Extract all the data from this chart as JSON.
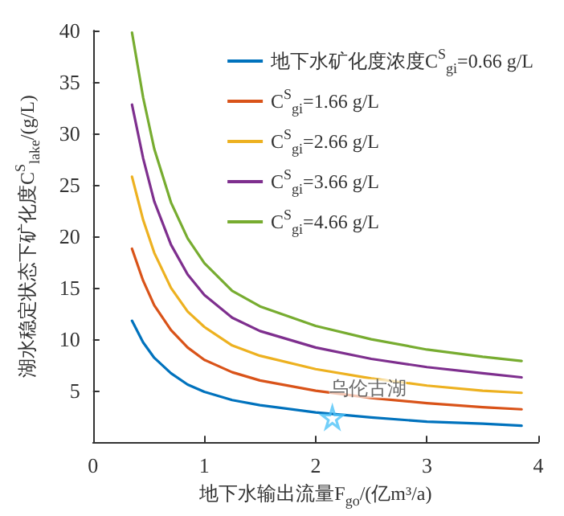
{
  "chart_data": {
    "type": "line",
    "xlabel": "地下水输出流量F$_{go}$/(亿m³/a)",
    "ylabel": "湖水稳定状态下矿化度C$^{S}$$_{lake}$/(g/L)",
    "x": [
      0.35,
      0.45,
      0.55,
      0.7,
      0.85,
      1,
      1.25,
      1.5,
      2,
      2.5,
      3,
      3.5,
      3.85
    ],
    "series": [
      {
        "name": "地下水矿化度浓度C$^{S}$$_{gi}$=0.66 g/L",
        "color": "#0072bd",
        "values": [
          11.8,
          9.7,
          8.2,
          6.7,
          5.6,
          4.9,
          4.1,
          3.6,
          2.9,
          2.4,
          2.0,
          1.8,
          1.6
        ]
      },
      {
        "name": "C$^{S}$$_{gi}$=1.66 g/L",
        "color": "#d95319",
        "values": [
          18.8,
          15.7,
          13.3,
          10.9,
          9.2,
          8.0,
          6.8,
          6.0,
          5.0,
          4.3,
          3.8,
          3.4,
          3.2
        ]
      },
      {
        "name": "C$^{S}$$_{gi}$=2.66 g/L",
        "color": "#edb120",
        "values": [
          25.8,
          21.6,
          18.4,
          15.0,
          12.7,
          11.2,
          9.4,
          8.4,
          7.1,
          6.2,
          5.5,
          5.0,
          4.8
        ]
      },
      {
        "name": "C$^{S}$$_{gi}$=3.66 g/L",
        "color": "#7e2f8e",
        "values": [
          32.8,
          27.6,
          23.4,
          19.2,
          16.3,
          14.3,
          12.1,
          10.8,
          9.2,
          8.1,
          7.3,
          6.7,
          6.3
        ]
      },
      {
        "name": "C$^{S}$$_{gi}$=4.66 g/L",
        "color": "#77ac30",
        "values": [
          39.8,
          33.5,
          28.5,
          23.3,
          19.8,
          17.4,
          14.7,
          13.2,
          11.3,
          10.0,
          9.0,
          8.3,
          7.9
        ]
      },
      {
        "type": "scatter",
        "marker": "star",
        "color": "#4fc3f7",
        "x": [
          2.15
        ],
        "values": [
          2.4
        ]
      }
    ],
    "annotations": [
      {
        "text": "乌伦古湖",
        "x": 2.15,
        "y": 2.4
      }
    ],
    "xlim": [
      0,
      4
    ],
    "xticks": [
      0,
      1,
      2,
      3,
      4
    ],
    "ylim": [
      0,
      40
    ],
    "yticks": [
      5,
      10,
      15,
      20,
      25,
      30,
      35,
      40
    ],
    "marker": "none",
    "line_style": "solid",
    "grid": false,
    "legend": "top right"
  }
}
